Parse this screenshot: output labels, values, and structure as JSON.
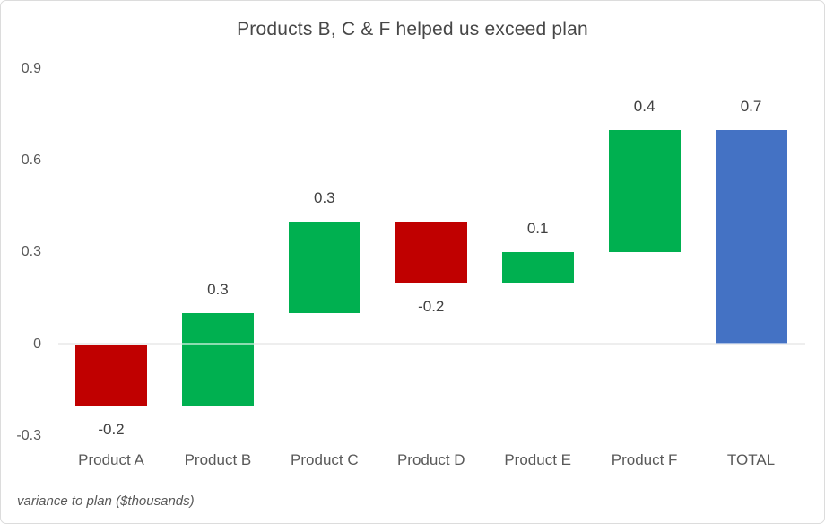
{
  "chart_data": {
    "type": "bar",
    "subtype": "waterfall",
    "title": "Products B, C & F helped us exceed plan",
    "note": "variance to plan ($thousands)",
    "xlabel": "",
    "ylabel": "",
    "ylim": [
      -0.3,
      0.9
    ],
    "grid": "zero-axis-line-only",
    "legend": "none",
    "categories": [
      "Product A",
      "Product B",
      "Product C",
      "Product D",
      "Product E",
      "Product F",
      "TOTAL"
    ],
    "bars": [
      {
        "category": "Product A",
        "value": -0.2,
        "label": "-0.2",
        "kind": "decrease"
      },
      {
        "category": "Product B",
        "value": 0.3,
        "label": "0.3",
        "kind": "increase"
      },
      {
        "category": "Product C",
        "value": 0.3,
        "label": "0.3",
        "kind": "increase"
      },
      {
        "category": "Product D",
        "value": -0.2,
        "label": "-0.2",
        "kind": "decrease"
      },
      {
        "category": "Product E",
        "value": 0.1,
        "label": "0.1",
        "kind": "increase"
      },
      {
        "category": "Product F",
        "value": 0.4,
        "label": "0.4",
        "kind": "increase"
      },
      {
        "category": "TOTAL",
        "value": 0.7,
        "label": "0.7",
        "kind": "total"
      }
    ],
    "cumulative_segments": [
      {
        "category": "Product A",
        "from": 0.0,
        "to": -0.2
      },
      {
        "category": "Product B",
        "from": -0.2,
        "to": 0.1
      },
      {
        "category": "Product C",
        "from": 0.1,
        "to": 0.4
      },
      {
        "category": "Product D",
        "from": 0.4,
        "to": 0.2
      },
      {
        "category": "Product E",
        "from": 0.2,
        "to": 0.3
      },
      {
        "category": "Product F",
        "from": 0.3,
        "to": 0.7
      },
      {
        "category": "TOTAL",
        "from": 0.0,
        "to": 0.7
      }
    ],
    "yticks": [
      {
        "value": 0.9,
        "label": "0.9"
      },
      {
        "value": 0.6,
        "label": "0.6"
      },
      {
        "value": 0.3,
        "label": "0.3"
      },
      {
        "value": 0,
        "label": "0"
      },
      {
        "value": -0.3,
        "label": "-0.3"
      }
    ],
    "colors": {
      "increase": "#00B050",
      "decrease": "#C00000",
      "total": "#4472C4",
      "axis_line": "#D9D9D9",
      "label_text": "#404040",
      "tick_text": "#595959"
    }
  }
}
